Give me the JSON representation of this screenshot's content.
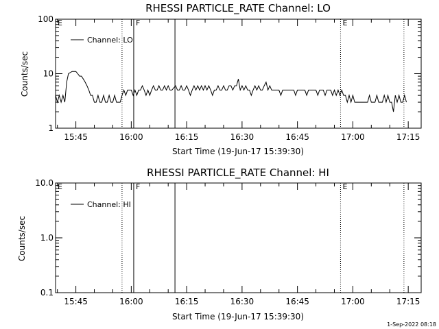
{
  "chart_data": [
    {
      "type": "line",
      "title": "RHESSI PARTICLE_RATE Channel: LO",
      "xlabel": "Start Time (19-Jun-17 15:39:30)",
      "ylabel": "Counts/sec",
      "yscale": "log",
      "ylim": [
        1,
        100
      ],
      "yticks": [
        "1",
        "10",
        "100"
      ],
      "xlim": [
        "15:39:30",
        "17:18:30"
      ],
      "xticks": [
        "15:45",
        "16:00",
        "16:15",
        "16:30",
        "16:45",
        "17:00",
        "17:15"
      ],
      "legend": {
        "position": "top-left",
        "entries": [
          "Channel: LO"
        ]
      },
      "series": [
        {
          "name": "Channel: LO",
          "points": [
            [
              "15:39:30",
              4
            ],
            [
              "15:40:00",
              3
            ],
            [
              "15:40:30",
              4
            ],
            [
              "15:41:00",
              3
            ],
            [
              "15:41:30",
              4
            ],
            [
              "15:42:00",
              3
            ],
            [
              "15:42:30",
              7
            ],
            [
              "15:43:00",
              10
            ],
            [
              "15:44:00",
              11
            ],
            [
              "15:45:00",
              11
            ],
            [
              "15:45:30",
              10
            ],
            [
              "15:46:00",
              9
            ],
            [
              "15:46:30",
              9
            ],
            [
              "15:47:00",
              8
            ],
            [
              "15:47:30",
              7
            ],
            [
              "15:48:00",
              6
            ],
            [
              "15:48:30",
              5
            ],
            [
              "15:49:00",
              4
            ],
            [
              "15:49:30",
              4
            ],
            [
              "15:50:00",
              3
            ],
            [
              "15:50:30",
              3
            ],
            [
              "15:51:00",
              4
            ],
            [
              "15:51:30",
              3
            ],
            [
              "15:52:00",
              3
            ],
            [
              "15:52:30",
              4
            ],
            [
              "15:53:00",
              3
            ],
            [
              "15:53:30",
              3
            ],
            [
              "15:54:00",
              4
            ],
            [
              "15:54:30",
              3
            ],
            [
              "15:55:00",
              3
            ],
            [
              "15:55:30",
              4
            ],
            [
              "15:56:00",
              3
            ],
            [
              "15:57:00",
              3
            ],
            [
              "15:57:30",
              4
            ],
            [
              "15:58:00",
              5
            ],
            [
              "15:58:30",
              4
            ],
            [
              "15:59:00",
              5
            ],
            [
              "16:00:00",
              5
            ],
            [
              "16:00:30",
              4
            ],
            [
              "16:01:00",
              5
            ],
            [
              "16:01:30",
              4
            ],
            [
              "16:02:00",
              5
            ],
            [
              "16:02:30",
              5
            ],
            [
              "16:03:00",
              6
            ],
            [
              "16:03:30",
              5
            ],
            [
              "16:04:00",
              4
            ],
            [
              "16:04:30",
              5
            ],
            [
              "16:05:00",
              4
            ],
            [
              "16:05:30",
              5
            ],
            [
              "16:06:00",
              6
            ],
            [
              "16:06:30",
              5
            ],
            [
              "16:07:00",
              5
            ],
            [
              "16:07:30",
              6
            ],
            [
              "16:08:00",
              5
            ],
            [
              "16:08:30",
              5
            ],
            [
              "16:09:00",
              6
            ],
            [
              "16:09:30",
              5
            ],
            [
              "16:10:00",
              6
            ],
            [
              "16:10:30",
              5
            ],
            [
              "16:11:00",
              5
            ],
            [
              "16:12:00",
              6
            ],
            [
              "16:12:30",
              5
            ],
            [
              "16:13:00",
              5
            ],
            [
              "16:13:30",
              6
            ],
            [
              "16:14:00",
              5
            ],
            [
              "16:14:30",
              5
            ],
            [
              "16:15:00",
              6
            ],
            [
              "16:15:30",
              5
            ],
            [
              "16:16:00",
              4
            ],
            [
              "16:16:30",
              5
            ],
            [
              "16:17:00",
              6
            ],
            [
              "16:17:30",
              5
            ],
            [
              "16:18:00",
              6
            ],
            [
              "16:18:30",
              5
            ],
            [
              "16:19:00",
              6
            ],
            [
              "16:19:30",
              5
            ],
            [
              "16:20:00",
              6
            ],
            [
              "16:20:30",
              5
            ],
            [
              "16:21:00",
              6
            ],
            [
              "16:21:30",
              5
            ],
            [
              "16:22:00",
              4
            ],
            [
              "16:22:30",
              5
            ],
            [
              "16:23:00",
              5
            ],
            [
              "16:23:30",
              6
            ],
            [
              "16:24:00",
              5
            ],
            [
              "16:24:30",
              5
            ],
            [
              "16:25:00",
              6
            ],
            [
              "16:25:30",
              5
            ],
            [
              "16:26:00",
              5
            ],
            [
              "16:26:30",
              6
            ],
            [
              "16:27:00",
              6
            ],
            [
              "16:27:30",
              5
            ],
            [
              "16:28:00",
              6
            ],
            [
              "16:28:30",
              6
            ],
            [
              "16:29:00",
              8
            ],
            [
              "16:29:30",
              5
            ],
            [
              "16:30:00",
              6
            ],
            [
              "16:30:30",
              5
            ],
            [
              "16:31:00",
              6
            ],
            [
              "16:31:30",
              5
            ],
            [
              "16:32:00",
              5
            ],
            [
              "16:32:30",
              4
            ],
            [
              "16:33:00",
              5
            ],
            [
              "16:33:30",
              6
            ],
            [
              "16:34:00",
              5
            ],
            [
              "16:34:30",
              6
            ],
            [
              "16:35:00",
              5
            ],
            [
              "16:35:30",
              5
            ],
            [
              "16:36:00",
              6
            ],
            [
              "16:36:30",
              7
            ],
            [
              "16:37:00",
              5
            ],
            [
              "16:37:30",
              6
            ],
            [
              "16:38:00",
              5
            ],
            [
              "16:38:30",
              5
            ],
            [
              "16:40:00",
              5
            ],
            [
              "16:40:30",
              4
            ],
            [
              "16:41:00",
              5
            ],
            [
              "16:42:00",
              5
            ],
            [
              "16:43:00",
              5
            ],
            [
              "16:44:00",
              5
            ],
            [
              "16:44:30",
              4
            ],
            [
              "16:45:00",
              5
            ],
            [
              "16:46:00",
              5
            ],
            [
              "16:47:00",
              5
            ],
            [
              "16:47:30",
              4
            ],
            [
              "16:48:00",
              5
            ],
            [
              "16:49:00",
              5
            ],
            [
              "16:50:00",
              5
            ],
            [
              "16:50:30",
              4
            ],
            [
              "16:51:00",
              5
            ],
            [
              "16:52:00",
              5
            ],
            [
              "16:52:30",
              4
            ],
            [
              "16:53:00",
              5
            ],
            [
              "16:54:00",
              5
            ],
            [
              "16:54:30",
              4
            ],
            [
              "16:55:00",
              5
            ],
            [
              "16:55:30",
              4
            ],
            [
              "16:56:00",
              5
            ],
            [
              "16:56:30",
              4
            ],
            [
              "16:57:00",
              5
            ],
            [
              "16:57:30",
              4
            ],
            [
              "16:58:00",
              4
            ],
            [
              "16:58:30",
              3
            ],
            [
              "16:59:00",
              4
            ],
            [
              "16:59:30",
              3
            ],
            [
              "17:00:00",
              4
            ],
            [
              "17:00:30",
              3
            ],
            [
              "17:01:00",
              3
            ],
            [
              "17:02:00",
              3
            ],
            [
              "17:03:00",
              3
            ],
            [
              "17:04:00",
              3
            ],
            [
              "17:04:30",
              4
            ],
            [
              "17:05:00",
              3
            ],
            [
              "17:06:00",
              3
            ],
            [
              "17:06:30",
              4
            ],
            [
              "17:07:00",
              3
            ],
            [
              "17:08:00",
              3
            ],
            [
              "17:08:30",
              4
            ],
            [
              "17:09:00",
              3
            ],
            [
              "17:09:30",
              4
            ],
            [
              "17:10:00",
              3
            ],
            [
              "17:10:30",
              3
            ],
            [
              "17:11:00",
              2
            ],
            [
              "17:11:30",
              4
            ],
            [
              "17:12:00",
              3
            ],
            [
              "17:12:30",
              4
            ],
            [
              "17:13:00",
              3
            ],
            [
              "17:13:30",
              3
            ],
            [
              "17:14:00",
              4
            ],
            [
              "17:14:30",
              3
            ]
          ]
        }
      ],
      "markers": [
        {
          "time": "15:39:30",
          "label": "E",
          "style": "dotted",
          "label_only": true
        },
        {
          "time": "15:57:30",
          "label": "",
          "style": "dotted"
        },
        {
          "time": "16:00:40",
          "label": "F",
          "style": "solid"
        },
        {
          "time": "16:11:50",
          "label": "",
          "style": "solid"
        },
        {
          "time": "16:56:40",
          "label": "E",
          "style": "dotted"
        },
        {
          "time": "17:13:50",
          "label": "",
          "style": "dotted"
        }
      ]
    },
    {
      "type": "line",
      "title": "RHESSI PARTICLE_RATE Channel: HI",
      "xlabel": "Start Time (19-Jun-17 15:39:30)",
      "ylabel": "Counts/sec",
      "yscale": "log",
      "ylim": [
        0.1,
        10
      ],
      "yticks": [
        "0.1",
        "1.0",
        "10.0"
      ],
      "xlim": [
        "15:39:30",
        "17:18:30"
      ],
      "xticks": [
        "15:45",
        "16:00",
        "16:15",
        "16:30",
        "16:45",
        "17:00",
        "17:15"
      ],
      "legend": {
        "position": "top-left",
        "entries": [
          "Channel: HI"
        ]
      },
      "series": [
        {
          "name": "Channel: HI",
          "points": []
        }
      ],
      "markers": [
        {
          "time": "15:39:30",
          "label": "E",
          "style": "dotted",
          "label_only": true
        },
        {
          "time": "15:57:30",
          "label": "",
          "style": "dotted"
        },
        {
          "time": "16:00:40",
          "label": "F",
          "style": "solid"
        },
        {
          "time": "16:11:50",
          "label": "",
          "style": "solid"
        },
        {
          "time": "16:56:40",
          "label": "E",
          "style": "dotted"
        },
        {
          "time": "17:13:50",
          "label": "",
          "style": "dotted"
        }
      ]
    }
  ],
  "footer": {
    "timestamp": "1-Sep-2022 08:18"
  }
}
